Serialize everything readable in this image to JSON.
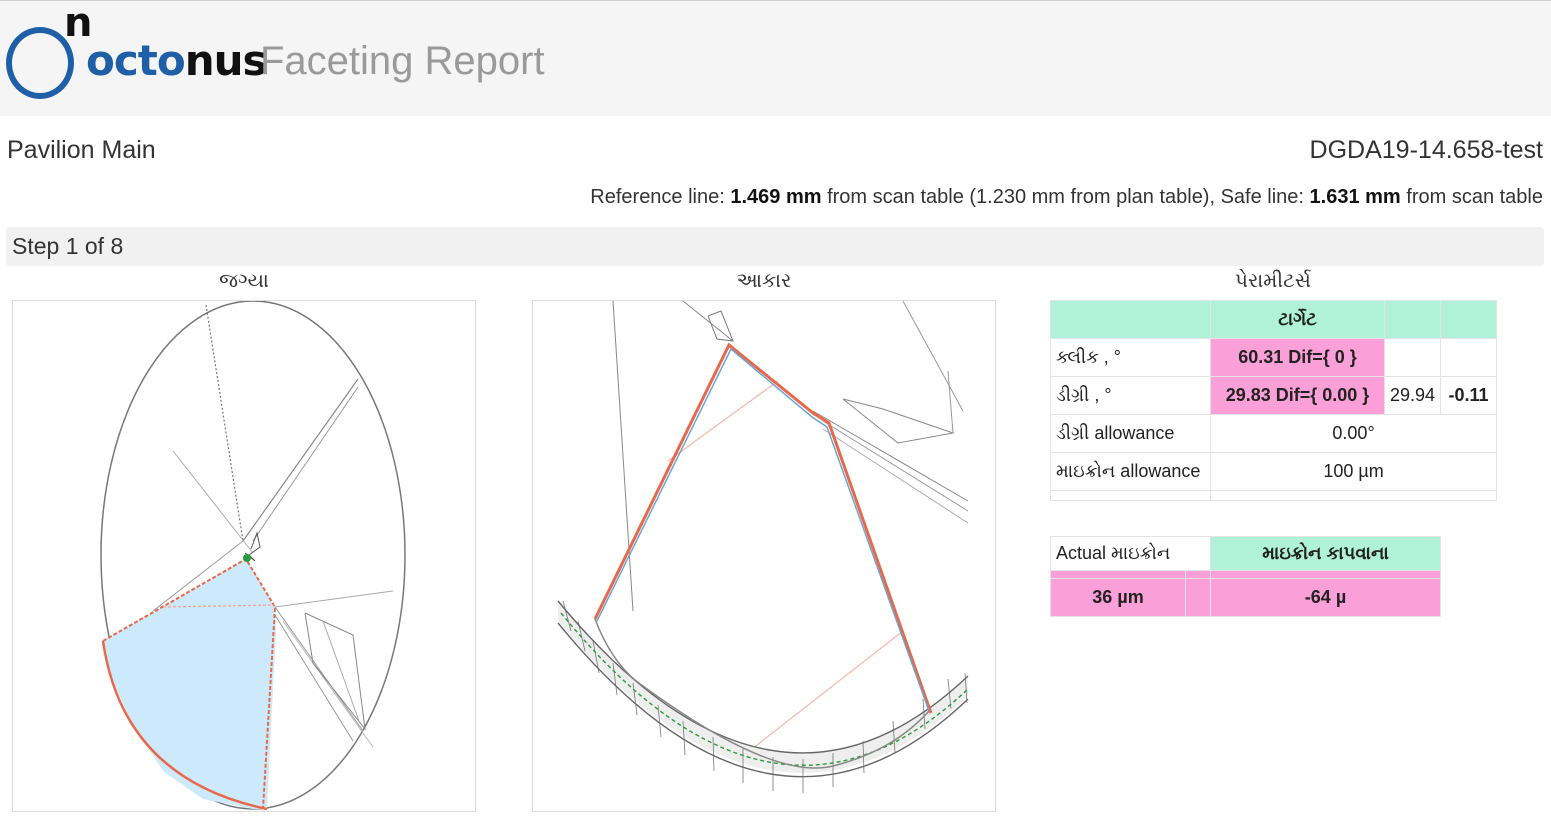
{
  "header": {
    "logo_n": "n",
    "logo_octo": "octo",
    "logo_nus": "nus",
    "title": "Faceting Report"
  },
  "info": {
    "facet_name": "Pavilion Main",
    "project_id": "DGDA19-14.658-test",
    "reference": {
      "prefix": "Reference line: ",
      "ref_value": "1.469 mm",
      "mid1": " from scan table (1.230 mm from plan table), Safe line: ",
      "safe_value": "1.631 mm",
      "suffix": " from scan table"
    }
  },
  "step": {
    "label": "Step 1 of 8"
  },
  "sections": {
    "position": "જગ્યા",
    "shape": "આકાર",
    "parameters": "પેરામીટર્સ"
  },
  "params": {
    "header_target": "ટાર્ગેટ",
    "rows": [
      {
        "label": "ક્લીક , °",
        "target": "60.31 Dif={ 0 }",
        "actual": "",
        "diff": ""
      },
      {
        "label": "ડીગ્રી , °",
        "target": "29.83 Dif={ 0.00 }",
        "actual": "29.94",
        "diff": "-0.11"
      },
      {
        "label": "ડીગ્રી allowance",
        "value": "0.00°"
      },
      {
        "label": "માઇક્રોન allowance",
        "value": "100 µm"
      }
    ]
  },
  "actual": {
    "label": "Actual માઇક્રોન",
    "header": "માઇક્રોન કાપવાના",
    "micron": "36 µm",
    "cut": "-64 µ"
  },
  "colors": {
    "brand_blue": "#1f5fa8",
    "mint": "#b0f2d9",
    "pink": "#fb9fd8",
    "facet_fill": "#cdeafc",
    "outline_red": "#e8694a",
    "outline_blue": "#6aa5d6",
    "green_line": "#2a9a3a"
  }
}
